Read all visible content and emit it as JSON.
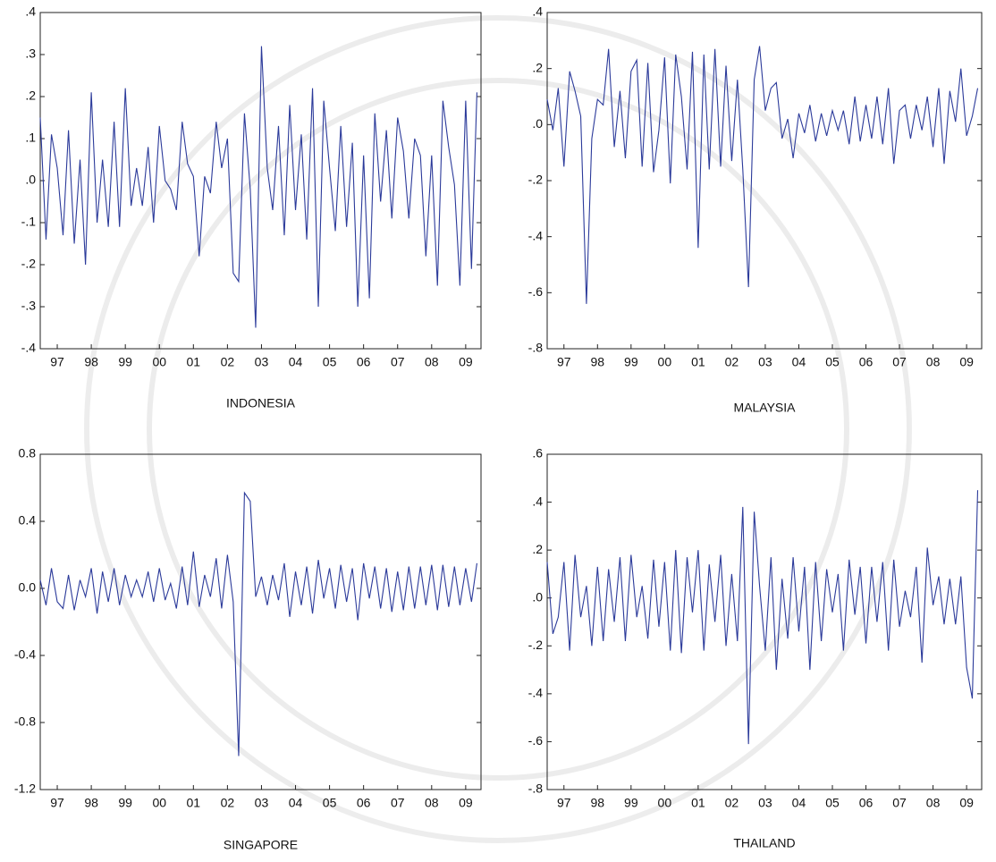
{
  "chart_data": [
    {
      "type": "line",
      "title": "INDONESIA",
      "color": "#2b3a9a",
      "xlim": [
        1997,
        2009.95
      ],
      "ylim": [
        -0.4,
        0.4
      ],
      "yticks": [
        {
          "value": 0.4,
          "label": ".4"
        },
        {
          "value": 0.3,
          "label": ".3"
        },
        {
          "value": 0.2,
          "label": ".2"
        },
        {
          "value": 0.1,
          "label": ".1"
        },
        {
          "value": 0,
          "label": ".0"
        },
        {
          "value": -0.1,
          "label": "-.1"
        },
        {
          "value": -0.2,
          "label": "-.2"
        },
        {
          "value": -0.3,
          "label": "-.3"
        },
        {
          "value": -0.4,
          "label": "-.4"
        }
      ],
      "xticks": [
        {
          "value": 1997.5,
          "label": "97"
        },
        {
          "value": 1998.5,
          "label": "98"
        },
        {
          "value": 1999.5,
          "label": "99"
        },
        {
          "value": 2000.5,
          "label": "00"
        },
        {
          "value": 2001.5,
          "label": "01"
        },
        {
          "value": 2002.5,
          "label": "02"
        },
        {
          "value": 2003.5,
          "label": "03"
        },
        {
          "value": 2004.5,
          "label": "04"
        },
        {
          "value": 2005.5,
          "label": "05"
        },
        {
          "value": 2006.5,
          "label": "06"
        },
        {
          "value": 2007.5,
          "label": "07"
        },
        {
          "value": 2008.5,
          "label": "08"
        },
        {
          "value": 2009.5,
          "label": "09"
        }
      ],
      "x": [
        1997,
        1997.17,
        1997.33,
        1997.5,
        1997.67,
        1997.83,
        1998,
        1998.17,
        1998.33,
        1998.5,
        1998.67,
        1998.83,
        1999,
        1999.17,
        1999.33,
        1999.5,
        1999.67,
        1999.83,
        2000,
        2000.17,
        2000.33,
        2000.5,
        2000.67,
        2000.83,
        2001,
        2001.17,
        2001.33,
        2001.5,
        2001.67,
        2001.83,
        2002,
        2002.17,
        2002.33,
        2002.5,
        2002.67,
        2002.83,
        2003,
        2003.17,
        2003.33,
        2003.5,
        2003.67,
        2003.83,
        2004,
        2004.17,
        2004.33,
        2004.5,
        2004.67,
        2004.83,
        2005,
        2005.17,
        2005.33,
        2005.5,
        2005.67,
        2005.83,
        2006,
        2006.17,
        2006.33,
        2006.5,
        2006.67,
        2006.83,
        2007,
        2007.17,
        2007.33,
        2007.5,
        2007.67,
        2007.83,
        2008,
        2008.17,
        2008.33,
        2008.5,
        2008.67,
        2008.83,
        2009,
        2009.17,
        2009.33,
        2009.5,
        2009.67,
        2009.83
      ],
      "values": [
        0.15,
        -0.14,
        0.11,
        0.03,
        -0.13,
        0.12,
        -0.15,
        0.05,
        -0.2,
        0.21,
        -0.1,
        0.05,
        -0.11,
        0.14,
        -0.11,
        0.22,
        -0.06,
        0.03,
        -0.06,
        0.08,
        -0.1,
        0.13,
        0,
        -0.02,
        -0.07,
        0.14,
        0.04,
        0.01,
        -0.18,
        0.01,
        -0.03,
        0.14,
        0.03,
        0.1,
        -0.22,
        -0.24,
        0.16,
        -0.02,
        -0.35,
        0.32,
        0.03,
        -0.07,
        0.13,
        -0.13,
        0.18,
        -0.07,
        0.11,
        -0.14,
        0.22,
        -0.3,
        0.19,
        0.03,
        -0.12,
        0.13,
        -0.11,
        0.09,
        -0.3,
        0.06,
        -0.28,
        0.16,
        -0.05,
        0.12,
        -0.09,
        0.15,
        0.07,
        -0.09,
        0.1,
        0.06,
        -0.18,
        0.06,
        -0.25,
        0.19,
        0.08,
        -0.01,
        -0.25,
        0.19,
        -0.21,
        0.21
      ]
    },
    {
      "type": "line",
      "title": "MALAYSIA",
      "color": "#2b3a9a",
      "xlim": [
        1997,
        2009.95
      ],
      "ylim": [
        -0.8,
        0.4
      ],
      "yticks": [
        {
          "value": 0.4,
          "label": ".4"
        },
        {
          "value": 0.2,
          "label": ".2"
        },
        {
          "value": 0,
          "label": ".0"
        },
        {
          "value": -0.2,
          "label": "-.2"
        },
        {
          "value": -0.4,
          "label": "-.4"
        },
        {
          "value": -0.6,
          "label": "-.6"
        },
        {
          "value": -0.8,
          "label": "-.8"
        }
      ],
      "xticks": [
        {
          "value": 1997.5,
          "label": "97"
        },
        {
          "value": 1998.5,
          "label": "98"
        },
        {
          "value": 1999.5,
          "label": "99"
        },
        {
          "value": 2000.5,
          "label": "00"
        },
        {
          "value": 2001.5,
          "label": "01"
        },
        {
          "value": 2002.5,
          "label": "02"
        },
        {
          "value": 2003.5,
          "label": "03"
        },
        {
          "value": 2004.5,
          "label": "04"
        },
        {
          "value": 2005.5,
          "label": "05"
        },
        {
          "value": 2006.5,
          "label": "06"
        },
        {
          "value": 2007.5,
          "label": "07"
        },
        {
          "value": 2008.5,
          "label": "08"
        },
        {
          "value": 2009.5,
          "label": "09"
        }
      ],
      "x": [
        1997,
        1997.17,
        1997.33,
        1997.5,
        1997.67,
        1997.83,
        1998,
        1998.17,
        1998.33,
        1998.5,
        1998.67,
        1998.83,
        1999,
        1999.17,
        1999.33,
        1999.5,
        1999.67,
        1999.83,
        2000,
        2000.17,
        2000.33,
        2000.5,
        2000.67,
        2000.83,
        2001,
        2001.17,
        2001.33,
        2001.5,
        2001.67,
        2001.83,
        2002,
        2002.17,
        2002.33,
        2002.5,
        2002.67,
        2002.83,
        2003,
        2003.17,
        2003.33,
        2003.5,
        2003.67,
        2003.83,
        2004,
        2004.17,
        2004.33,
        2004.5,
        2004.67,
        2004.83,
        2005,
        2005.17,
        2005.33,
        2005.5,
        2005.67,
        2005.83,
        2006,
        2006.17,
        2006.33,
        2006.5,
        2006.67,
        2006.83,
        2007,
        2007.17,
        2007.33,
        2007.5,
        2007.67,
        2007.83,
        2008,
        2008.17,
        2008.33,
        2008.5,
        2008.67,
        2008.83,
        2009,
        2009.17,
        2009.33,
        2009.5,
        2009.67,
        2009.83
      ],
      "values": [
        0.09,
        -0.02,
        0.13,
        -0.15,
        0.19,
        0.12,
        0.03,
        -0.64,
        -0.05,
        0.09,
        0.07,
        0.27,
        -0.08,
        0.12,
        -0.12,
        0.19,
        0.23,
        -0.15,
        0.22,
        -0.17,
        -0.02,
        0.24,
        -0.21,
        0.25,
        0.1,
        -0.16,
        0.26,
        -0.44,
        0.25,
        -0.16,
        0.27,
        -0.15,
        0.21,
        -0.13,
        0.16,
        -0.16,
        -0.58,
        0.16,
        0.28,
        0.05,
        0.13,
        0.15,
        -0.05,
        0.02,
        -0.12,
        0.04,
        -0.03,
        0.07,
        -0.06,
        0.04,
        -0.04,
        0.05,
        -0.02,
        0.05,
        -0.07,
        0.1,
        -0.06,
        0.07,
        -0.05,
        0.1,
        -0.07,
        0.13,
        -0.14,
        0.05,
        0.07,
        -0.05,
        0.07,
        -0.02,
        0.1,
        -0.08,
        0.13,
        -0.14,
        0.12,
        0.01,
        0.2,
        -0.04,
        0.03,
        0.13
      ]
    },
    {
      "type": "line",
      "title": "SINGAPORE",
      "color": "#2b3a9a",
      "xlim": [
        1997,
        2009.95
      ],
      "ylim": [
        -1.2,
        0.8
      ],
      "yticks": [
        {
          "value": 0.8,
          "label": "0.8"
        },
        {
          "value": 0.4,
          "label": "0.4"
        },
        {
          "value": 0,
          "label": "0.0"
        },
        {
          "value": -0.4,
          "label": "-0.4"
        },
        {
          "value": -0.8,
          "label": "-0.8"
        },
        {
          "value": -1.2,
          "label": "-1.2"
        }
      ],
      "xticks": [
        {
          "value": 1997.5,
          "label": "97"
        },
        {
          "value": 1998.5,
          "label": "98"
        },
        {
          "value": 1999.5,
          "label": "99"
        },
        {
          "value": 2000.5,
          "label": "00"
        },
        {
          "value": 2001.5,
          "label": "01"
        },
        {
          "value": 2002.5,
          "label": "02"
        },
        {
          "value": 2003.5,
          "label": "03"
        },
        {
          "value": 2004.5,
          "label": "04"
        },
        {
          "value": 2005.5,
          "label": "05"
        },
        {
          "value": 2006.5,
          "label": "06"
        },
        {
          "value": 2007.5,
          "label": "07"
        },
        {
          "value": 2008.5,
          "label": "08"
        },
        {
          "value": 2009.5,
          "label": "09"
        }
      ],
      "x": [
        1997,
        1997.17,
        1997.33,
        1997.5,
        1997.67,
        1997.83,
        1998,
        1998.17,
        1998.33,
        1998.5,
        1998.67,
        1998.83,
        1999,
        1999.17,
        1999.33,
        1999.5,
        1999.67,
        1999.83,
        2000,
        2000.17,
        2000.33,
        2000.5,
        2000.67,
        2000.83,
        2001,
        2001.17,
        2001.33,
        2001.5,
        2001.67,
        2001.83,
        2002,
        2002.17,
        2002.33,
        2002.5,
        2002.67,
        2002.83,
        2003,
        2003.17,
        2003.33,
        2003.5,
        2003.67,
        2003.83,
        2004,
        2004.17,
        2004.33,
        2004.5,
        2004.67,
        2004.83,
        2005,
        2005.17,
        2005.33,
        2005.5,
        2005.67,
        2005.83,
        2006,
        2006.17,
        2006.33,
        2006.5,
        2006.67,
        2006.83,
        2007,
        2007.17,
        2007.33,
        2007.5,
        2007.67,
        2007.83,
        2008,
        2008.17,
        2008.33,
        2008.5,
        2008.67,
        2008.83,
        2009,
        2009.17,
        2009.33,
        2009.5,
        2009.67,
        2009.83
      ],
      "values": [
        0.05,
        -0.1,
        0.12,
        -0.08,
        -0.12,
        0.08,
        -0.13,
        0.05,
        -0.05,
        0.12,
        -0.15,
        0.1,
        -0.08,
        0.12,
        -0.1,
        0.08,
        -0.05,
        0.05,
        -0.05,
        0.1,
        -0.08,
        0.12,
        -0.07,
        0.03,
        -0.12,
        0.13,
        -0.1,
        0.22,
        -0.11,
        0.08,
        -0.05,
        0.18,
        -0.12,
        0.2,
        -0.08,
        -1.0,
        0.57,
        0.52,
        -0.05,
        0.07,
        -0.1,
        0.08,
        -0.07,
        0.15,
        -0.17,
        0.1,
        -0.1,
        0.13,
        -0.15,
        0.17,
        -0.06,
        0.12,
        -0.12,
        0.14,
        -0.08,
        0.12,
        -0.19,
        0.15,
        -0.06,
        0.13,
        -0.12,
        0.12,
        -0.14,
        0.1,
        -0.13,
        0.13,
        -0.12,
        0.13,
        -0.1,
        0.14,
        -0.13,
        0.14,
        -0.11,
        0.13,
        -0.1,
        0.12,
        -0.08,
        0.15
      ]
    },
    {
      "type": "line",
      "title": "THAILAND",
      "color": "#2b3a9a",
      "xlim": [
        1997,
        2009.95
      ],
      "ylim": [
        -0.8,
        0.6
      ],
      "yticks": [
        {
          "value": 0.6,
          "label": ".6"
        },
        {
          "value": 0.4,
          "label": ".4"
        },
        {
          "value": 0.2,
          "label": ".2"
        },
        {
          "value": 0,
          "label": ".0"
        },
        {
          "value": -0.2,
          "label": "-.2"
        },
        {
          "value": -0.4,
          "label": "-.4"
        },
        {
          "value": -0.6,
          "label": "-.6"
        },
        {
          "value": -0.8,
          "label": "-.8"
        }
      ],
      "xticks": [
        {
          "value": 1997.5,
          "label": "97"
        },
        {
          "value": 1998.5,
          "label": "98"
        },
        {
          "value": 1999.5,
          "label": "99"
        },
        {
          "value": 2000.5,
          "label": "00"
        },
        {
          "value": 2001.5,
          "label": "01"
        },
        {
          "value": 2002.5,
          "label": "02"
        },
        {
          "value": 2003.5,
          "label": "03"
        },
        {
          "value": 2004.5,
          "label": "04"
        },
        {
          "value": 2005.5,
          "label": "05"
        },
        {
          "value": 2006.5,
          "label": "06"
        },
        {
          "value": 2007.5,
          "label": "07"
        },
        {
          "value": 2008.5,
          "label": "08"
        },
        {
          "value": 2009.5,
          "label": "09"
        }
      ],
      "x": [
        1997,
        1997.17,
        1997.33,
        1997.5,
        1997.67,
        1997.83,
        1998,
        1998.17,
        1998.33,
        1998.5,
        1998.67,
        1998.83,
        1999,
        1999.17,
        1999.33,
        1999.5,
        1999.67,
        1999.83,
        2000,
        2000.17,
        2000.33,
        2000.5,
        2000.67,
        2000.83,
        2001,
        2001.17,
        2001.33,
        2001.5,
        2001.67,
        2001.83,
        2002,
        2002.17,
        2002.33,
        2002.5,
        2002.67,
        2002.83,
        2003,
        2003.17,
        2003.33,
        2003.5,
        2003.67,
        2003.83,
        2004,
        2004.17,
        2004.33,
        2004.5,
        2004.67,
        2004.83,
        2005,
        2005.17,
        2005.33,
        2005.5,
        2005.67,
        2005.83,
        2006,
        2006.17,
        2006.33,
        2006.5,
        2006.67,
        2006.83,
        2007,
        2007.17,
        2007.33,
        2007.5,
        2007.67,
        2007.83,
        2008,
        2008.17,
        2008.33,
        2008.5,
        2008.67,
        2008.83,
        2009,
        2009.17,
        2009.33,
        2009.5,
        2009.67,
        2009.83
      ],
      "values": [
        0.15,
        -0.15,
        -0.08,
        0.15,
        -0.22,
        0.18,
        -0.08,
        0.05,
        -0.2,
        0.13,
        -0.18,
        0.12,
        -0.1,
        0.17,
        -0.18,
        0.18,
        -0.08,
        0.05,
        -0.17,
        0.16,
        -0.12,
        0.15,
        -0.22,
        0.2,
        -0.23,
        0.17,
        -0.06,
        0.2,
        -0.22,
        0.14,
        -0.1,
        0.18,
        -0.2,
        0.1,
        -0.18,
        0.38,
        -0.61,
        0.36,
        0.05,
        -0.22,
        0.17,
        -0.3,
        0.08,
        -0.17,
        0.17,
        -0.14,
        0.13,
        -0.3,
        0.15,
        -0.18,
        0.12,
        -0.06,
        0.1,
        -0.22,
        0.16,
        -0.07,
        0.13,
        -0.19,
        0.13,
        -0.1,
        0.15,
        -0.22,
        0.16,
        -0.12,
        0.03,
        -0.08,
        0.13,
        -0.27,
        0.21,
        -0.03,
        0.09,
        -0.11,
        0.08,
        -0.11,
        0.09,
        -0.29,
        -0.42,
        0.45
      ]
    }
  ]
}
